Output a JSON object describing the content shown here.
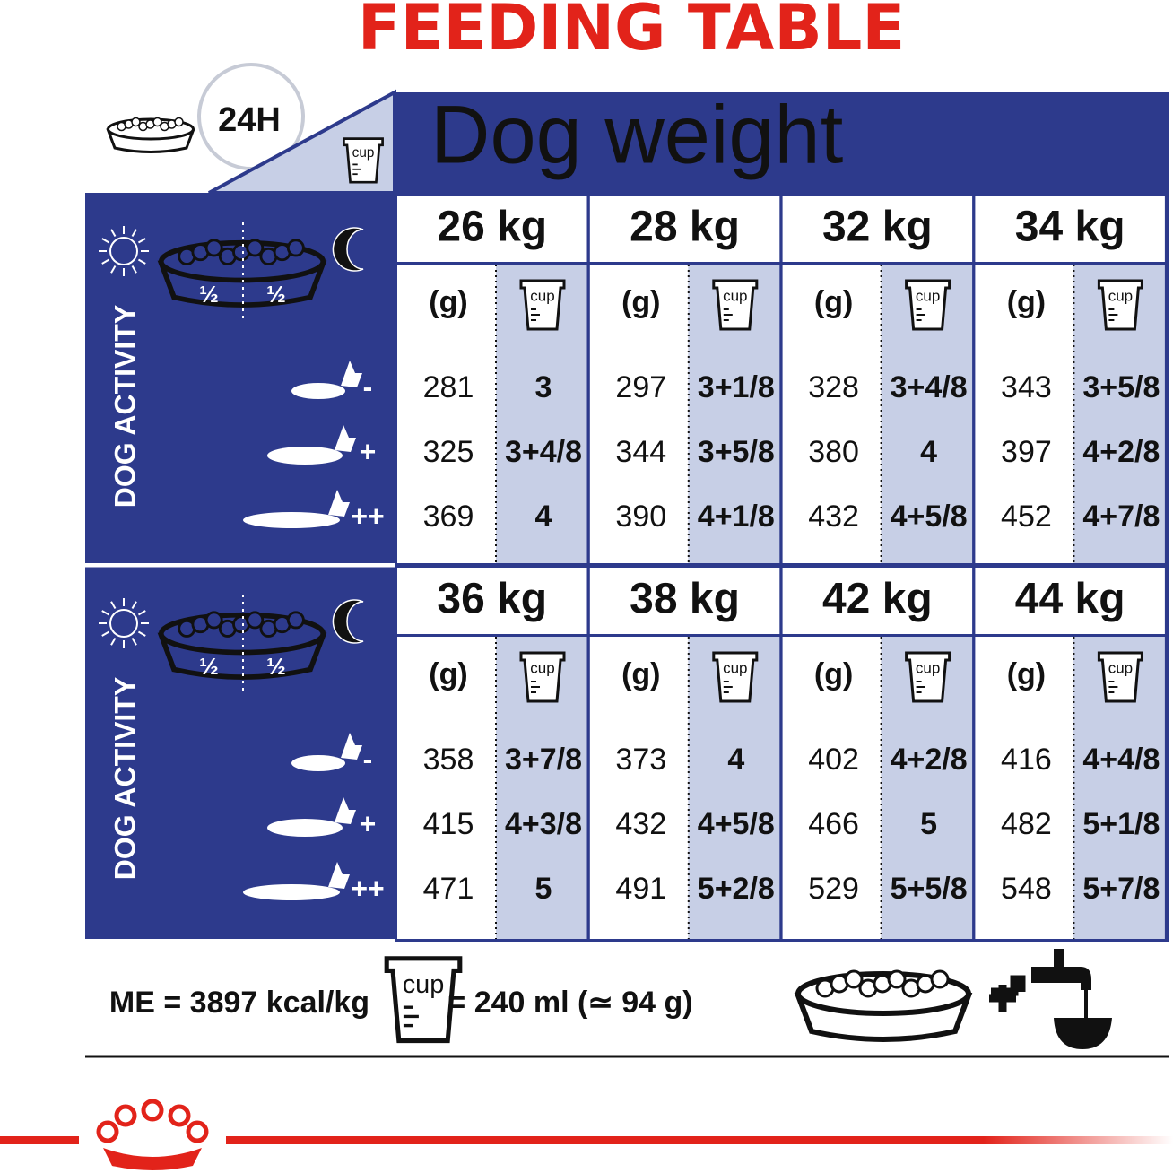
{
  "title": "FEEDING TABLE",
  "header": {
    "period": "24H",
    "dog_weight": "Dog weight"
  },
  "cup_label": "cup",
  "half": "½",
  "activity_label": "DOG ACTIVITY",
  "activity_levels": [
    "-",
    "+",
    "++"
  ],
  "grams_label": "(g)",
  "blocks": [
    {
      "columns": [
        {
          "weight": "26 kg",
          "grams": [
            281,
            325,
            369
          ],
          "cups": [
            "3",
            "3+4/8",
            "4"
          ]
        },
        {
          "weight": "28 kg",
          "grams": [
            297,
            344,
            390
          ],
          "cups": [
            "3+1/8",
            "3+5/8",
            "4+1/8"
          ]
        },
        {
          "weight": "32 kg",
          "grams": [
            328,
            380,
            432
          ],
          "cups": [
            "3+4/8",
            "4",
            "4+5/8"
          ]
        },
        {
          "weight": "34 kg",
          "grams": [
            343,
            397,
            452
          ],
          "cups": [
            "3+5/8",
            "4+2/8",
            "4+7/8"
          ]
        }
      ]
    },
    {
      "columns": [
        {
          "weight": "36 kg",
          "grams": [
            358,
            415,
            471
          ],
          "cups": [
            "3+7/8",
            "4+3/8",
            "5"
          ]
        },
        {
          "weight": "38 kg",
          "grams": [
            373,
            432,
            491
          ],
          "cups": [
            "4",
            "4+5/8",
            "5+2/8"
          ]
        },
        {
          "weight": "42 kg",
          "grams": [
            402,
            466,
            529
          ],
          "cups": [
            "4+2/8",
            "5",
            "5+5/8"
          ]
        },
        {
          "weight": "44 kg",
          "grams": [
            416,
            482,
            548
          ],
          "cups": [
            "4+4/8",
            "5+1/8",
            "5+7/8"
          ]
        }
      ]
    }
  ],
  "footer": {
    "energy": "ME = 3897 kcal/kg",
    "cup_equivalent": "= 240 ml (≃ 94 g)"
  }
}
